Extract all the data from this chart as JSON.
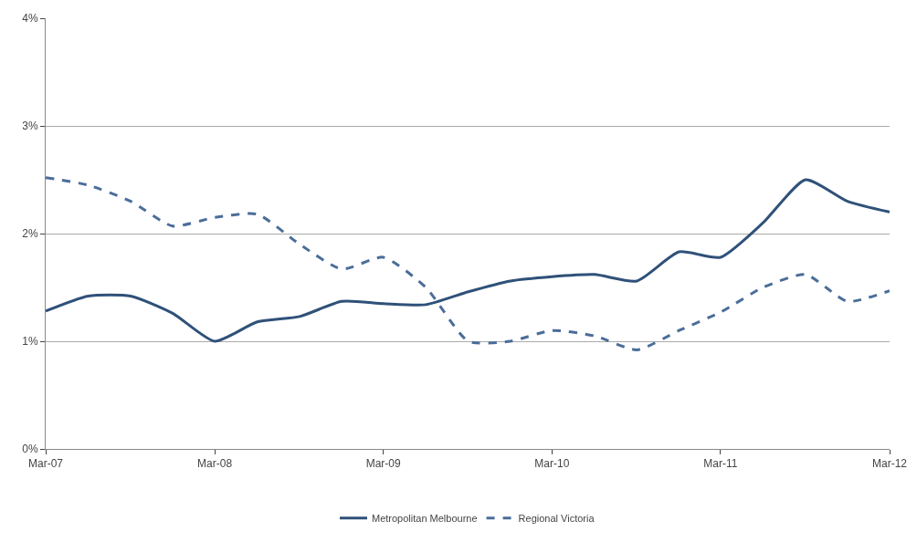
{
  "chart_data": {
    "type": "line",
    "x": [
      "2007-03",
      "2007-06",
      "2007-09",
      "2007-12",
      "2008-03",
      "2008-06",
      "2008-09",
      "2008-12",
      "2009-03",
      "2009-06",
      "2009-09",
      "2009-12",
      "2010-03",
      "2010-06",
      "2010-09",
      "2010-12",
      "2011-03",
      "2011-06",
      "2011-09",
      "2011-12",
      "2012-03"
    ],
    "series": [
      {
        "name": "Metropolitan Melbourne",
        "color": "#2f5179",
        "line_style": "solid",
        "values": [
          1.28,
          1.42,
          1.42,
          1.26,
          1.0,
          1.18,
          1.23,
          1.37,
          1.35,
          1.34,
          1.46,
          1.56,
          1.6,
          1.62,
          1.56,
          1.83,
          1.78,
          2.1,
          2.5,
          2.3,
          2.2
        ]
      },
      {
        "name": "Regional Victoria",
        "color": "#4a6d99",
        "line_style": "dashed",
        "values": [
          2.52,
          2.45,
          2.3,
          2.07,
          2.15,
          2.18,
          1.9,
          1.67,
          1.78,
          1.5,
          1.0,
          1.0,
          1.1,
          1.05,
          0.92,
          1.1,
          1.27,
          1.5,
          1.62,
          1.37,
          1.47
        ]
      }
    ],
    "ylim": [
      0,
      4
    ],
    "yticks": [
      {
        "value": 0,
        "label": "0%"
      },
      {
        "value": 1,
        "label": "1%"
      },
      {
        "value": 2,
        "label": "2%"
      },
      {
        "value": 3,
        "label": "3%"
      },
      {
        "value": 4,
        "label": "4%"
      }
    ],
    "xlim": [
      "2007-03",
      "2012-03"
    ],
    "xticks": [
      {
        "value": "2007-03",
        "label": "Mar-07"
      },
      {
        "value": "2008-03",
        "label": "Mar-08"
      },
      {
        "value": "2009-03",
        "label": "Mar-09"
      },
      {
        "value": "2010-03",
        "label": "Mar-10"
      },
      {
        "value": "2011-03",
        "label": "Mar-11"
      },
      {
        "value": "2012-03",
        "label": "Mar-12"
      }
    ],
    "grid": "y",
    "legend": "bottom",
    "marker": "none"
  }
}
